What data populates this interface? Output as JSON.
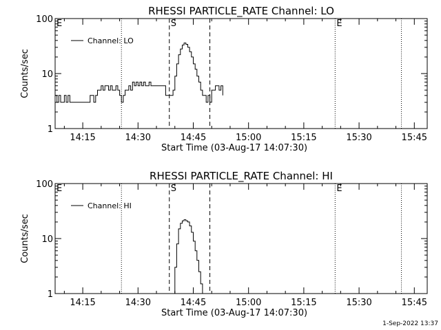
{
  "footer": {
    "date": "1-Sep-2022 13:37"
  },
  "chart_data": [
    {
      "type": "line",
      "title": "RHESSI PARTICLE_RATE Channel: LO",
      "xlabel": "Start Time (03-Aug-17 14:07:30)",
      "ylabel": "Counts/sec",
      "yscale": "log",
      "ylim": [
        1,
        100
      ],
      "xlim": [
        "14:07:30",
        "15:48:30"
      ],
      "xticks": [
        "14:15",
        "14:30",
        "14:45",
        "15:00",
        "15:15",
        "15:30",
        "15:45"
      ],
      "yticks": [
        "1",
        "10",
        "100"
      ],
      "legend": {
        "label": "Channel: LO",
        "position": "top-left"
      },
      "markers": [
        {
          "time": "14:07:30",
          "label": "E",
          "style": "dotted"
        },
        {
          "time": "14:25:30",
          "label": "",
          "style": "dotted"
        },
        {
          "time": "14:38:30",
          "label": "S",
          "style": "dashed"
        },
        {
          "time": "14:49:30",
          "label": "",
          "style": "dashed"
        },
        {
          "time": "15:23:30",
          "label": "E",
          "style": "dotted"
        },
        {
          "time": "15:41:30",
          "label": "",
          "style": "dotted"
        }
      ],
      "series": [
        {
          "x": [
            "14:07:30",
            "14:08:00",
            "14:08:30",
            "14:09:00",
            "14:09:30",
            "14:10:00",
            "14:10:30",
            "14:11:00",
            "14:11:30",
            "14:12:00",
            "14:13:00",
            "14:14:00",
            "14:15:00",
            "14:16:00",
            "14:17:00",
            "14:18:00",
            "14:18:30",
            "14:19:00",
            "14:19:30",
            "14:20:00",
            "14:20:30",
            "14:21:00",
            "14:21:30",
            "14:22:00",
            "14:22:30",
            "14:23:00",
            "14:23:30",
            "14:24:00",
            "14:24:30",
            "14:25:00",
            "14:25:30",
            "14:26:00",
            "14:26:30",
            "14:27:00",
            "14:27:30",
            "14:28:00",
            "14:28:30",
            "14:29:00",
            "14:29:30",
            "14:30:00",
            "14:30:30",
            "14:31:00",
            "14:31:30",
            "14:32:00",
            "14:32:30",
            "14:33:00",
            "14:33:30",
            "14:34:00",
            "14:34:30",
            "14:35:00",
            "14:35:30",
            "14:36:00",
            "14:36:30",
            "14:37:00",
            "14:37:30",
            "14:38:00",
            "14:38:30",
            "14:39:00",
            "14:39:30",
            "14:40:00",
            "14:40:30",
            "14:41:00",
            "14:41:30",
            "14:42:00",
            "14:42:30",
            "14:43:00",
            "14:43:30",
            "14:44:00",
            "14:44:30",
            "14:45:00",
            "14:45:30",
            "14:46:00",
            "14:46:30",
            "14:47:00",
            "14:47:30",
            "14:48:00",
            "14:48:30",
            "14:49:00",
            "14:49:30",
            "14:50:00",
            "14:50:30",
            "14:51:00",
            "14:51:30",
            "14:52:00",
            "14:52:30",
            "14:53:00"
          ],
          "y": [
            4,
            3,
            4,
            3,
            3,
            4,
            3,
            4,
            3,
            3,
            3,
            3,
            3,
            3,
            4,
            3,
            4,
            5,
            5,
            6,
            5,
            6,
            6,
            5,
            6,
            5,
            5,
            6,
            5,
            4,
            3,
            4,
            5,
            5,
            6,
            5,
            7,
            6,
            7,
            6,
            7,
            6,
            7,
            6,
            6,
            7,
            6,
            6,
            6,
            6,
            6,
            6,
            6,
            6,
            4,
            4,
            4,
            4,
            5,
            9,
            15,
            22,
            28,
            33,
            36,
            34,
            30,
            25,
            20,
            15,
            12,
            9,
            7,
            5,
            4,
            4,
            3,
            4,
            3,
            5,
            5,
            6,
            6,
            5,
            6,
            4
          ]
        }
      ]
    },
    {
      "type": "line",
      "title": "RHESSI PARTICLE_RATE Channel: HI",
      "xlabel": "Start Time (03-Aug-17 14:07:30)",
      "ylabel": "Counts/sec",
      "yscale": "log",
      "ylim": [
        1,
        100
      ],
      "xlim": [
        "14:07:30",
        "15:48:30"
      ],
      "xticks": [
        "14:15",
        "14:30",
        "14:45",
        "15:00",
        "15:15",
        "15:30",
        "15:45"
      ],
      "yticks": [
        "1",
        "10",
        "100"
      ],
      "legend": {
        "label": "Channel: HI",
        "position": "top-left"
      },
      "markers": [
        {
          "time": "14:07:30",
          "label": "E",
          "style": "dotted"
        },
        {
          "time": "14:25:30",
          "label": "",
          "style": "dotted"
        },
        {
          "time": "14:38:30",
          "label": "S",
          "style": "dashed"
        },
        {
          "time": "14:49:30",
          "label": "",
          "style": "dashed"
        },
        {
          "time": "15:23:30",
          "label": "E",
          "style": "dotted"
        },
        {
          "time": "15:41:30",
          "label": "",
          "style": "dotted"
        }
      ],
      "series": [
        {
          "x": [
            "14:39:30",
            "14:40:00",
            "14:40:30",
            "14:41:00",
            "14:41:30",
            "14:42:00",
            "14:42:30",
            "14:43:00",
            "14:43:30",
            "14:44:00",
            "14:44:30",
            "14:45:00",
            "14:45:30",
            "14:46:00",
            "14:46:30",
            "14:47:00",
            "14:47:30"
          ],
          "y": [
            1,
            3,
            8,
            15,
            19,
            21,
            22,
            21,
            20,
            17,
            13,
            9,
            6,
            4,
            2.5,
            1.5,
            1
          ]
        }
      ]
    }
  ]
}
